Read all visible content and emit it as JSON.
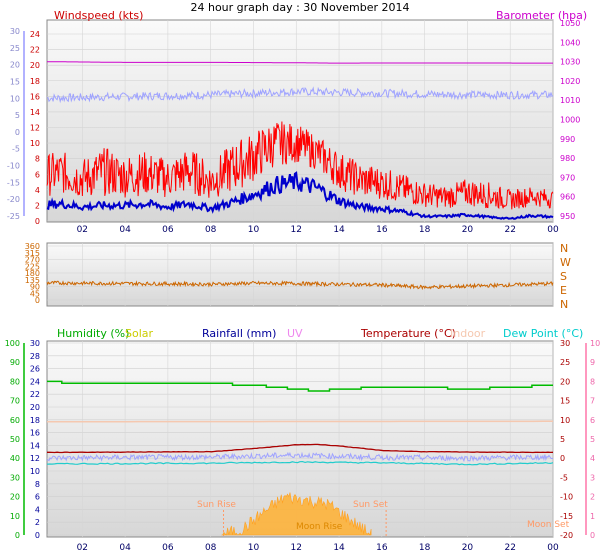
{
  "title": "24 hour graph day : 30 November 2014",
  "panels": {
    "wind": {
      "label_left": "Windspeed (kts)",
      "label_right": "Barometer (hpa)"
    },
    "direction": {
      "compass": [
        "N",
        "W",
        "S",
        "E",
        "N"
      ]
    },
    "multi": {
      "legends": [
        {
          "text": "Humidity (%)",
          "color": "#00aa00"
        },
        {
          "text": "Solar",
          "color": "#cccc00"
        },
        {
          "text": "Rainfall (mm)",
          "color": "#000099"
        },
        {
          "text": "UV",
          "color": "#ee88ee"
        },
        {
          "text": "Temperature (°C)",
          "color": "#aa0000"
        },
        {
          "text": "Indoor",
          "color": "#f5c8b0"
        },
        {
          "text": "Dew Point (°C)",
          "color": "#00cccc"
        }
      ],
      "annotations": {
        "sun_rise": "Sun Rise",
        "sun_set": "Sun Set",
        "moon_rise": "Moon Rise",
        "moon_set": "Moon Set"
      }
    }
  },
  "chart_data": [
    {
      "type": "line",
      "title": "24 hour graph day : 30 November 2014",
      "x_ticks": [
        "02",
        "04",
        "06",
        "08",
        "10",
        "12",
        "14",
        "16",
        "18",
        "20",
        "22",
        "00"
      ],
      "y_left_label": "Windspeed (kts)",
      "y_left_ticks": [
        0,
        2,
        4,
        6,
        8,
        10,
        12,
        14,
        16,
        18,
        20,
        22,
        24
      ],
      "y_left_outer_ticks": [
        -25,
        -20,
        -15,
        -10,
        -5,
        0,
        5,
        10,
        15,
        20,
        25,
        30
      ],
      "y_right_label": "Barometer (hpa)",
      "y_right_ticks": [
        950,
        960,
        970,
        980,
        990,
        1000,
        1010,
        1020,
        1030,
        1040,
        1050
      ],
      "series": [
        {
          "name": "Windspeed (kts)",
          "color": "#ff0000",
          "hours": [
            0,
            1,
            2,
            3,
            4,
            5,
            6,
            7,
            8,
            9,
            10,
            11,
            12,
            13,
            14,
            15,
            16,
            17,
            18,
            19,
            20,
            21,
            22,
            23,
            24
          ],
          "values": [
            3.0,
            3.5,
            2.8,
            3.2,
            3.0,
            3.3,
            2.9,
            3.5,
            2.7,
            3.6,
            5.0,
            7.0,
            7.5,
            6.5,
            4.0,
            3.0,
            2.8,
            2.2,
            1.8,
            1.6,
            1.9,
            1.6,
            1.4,
            1.9,
            1.6
          ]
        },
        {
          "name": "Windspeed gust",
          "color": "#ff0000",
          "hours": [
            0,
            1,
            2,
            3,
            4,
            5,
            6,
            7,
            8,
            9,
            10,
            11,
            12,
            13,
            14,
            15,
            16,
            17,
            18,
            19,
            20,
            21,
            22,
            23,
            24
          ],
          "values": [
            8.5,
            9.0,
            8.0,
            9.5,
            8.5,
            9.0,
            8.0,
            9.5,
            7.5,
            10.0,
            11.5,
            13.0,
            12.5,
            11.0,
            9.0,
            7.5,
            7.0,
            6.0,
            5.0,
            4.5,
            5.5,
            5.0,
            4.0,
            4.5,
            4.0
          ]
        },
        {
          "name": "Average windspeed",
          "color": "#0000cc",
          "hours": [
            0,
            1,
            2,
            3,
            4,
            5,
            6,
            7,
            8,
            9,
            10,
            11,
            12,
            13,
            14,
            15,
            16,
            17,
            18,
            19,
            20,
            21,
            22,
            23,
            24
          ],
          "values": [
            2.0,
            2.2,
            1.8,
            2.0,
            2.0,
            2.2,
            1.8,
            2.2,
            1.6,
            2.4,
            3.4,
            4.6,
            5.0,
            4.2,
            2.6,
            1.8,
            1.6,
            1.2,
            0.6,
            0.6,
            0.8,
            0.5,
            0.3,
            0.7,
            0.5
          ]
        },
        {
          "name": "Barometer (hpa)",
          "color": "#cc00cc",
          "hours": [
            0,
            4,
            8,
            12,
            14,
            16,
            20,
            24
          ],
          "values": [
            1030.0,
            1029.6,
            1029.6,
            1029.4,
            1029.2,
            1029.3,
            1029.3,
            1029.2
          ]
        },
        {
          "name": "Secondary",
          "color": "#9999ff",
          "hours": [
            0,
            4,
            8,
            12,
            16,
            20,
            24
          ],
          "values": [
            10,
            10.5,
            11,
            12,
            11.5,
            11,
            11
          ]
        }
      ]
    },
    {
      "type": "line",
      "title": "",
      "x_ticks": [],
      "y_left_ticks": [
        0,
        45,
        90,
        135,
        180,
        225,
        270,
        315,
        360
      ],
      "y_right_ticks": [
        "N",
        "W",
        "S",
        "E",
        "N"
      ],
      "series": [
        {
          "name": "Wind direction",
          "color": "#cc6600",
          "hours": [
            0,
            2,
            4,
            6,
            8,
            10,
            12,
            14,
            16,
            18,
            20,
            22,
            24
          ],
          "values": [
            115,
            112,
            110,
            108,
            105,
            112,
            110,
            105,
            100,
            85,
            92,
            100,
            110
          ]
        }
      ]
    },
    {
      "type": "line",
      "title": "",
      "x_ticks": [
        "02",
        "04",
        "06",
        "08",
        "10",
        "12",
        "14",
        "16",
        "18",
        "20",
        "22",
        "00"
      ],
      "y_humidity_ticks": [
        0,
        10,
        20,
        30,
        40,
        50,
        60,
        70,
        80,
        90,
        100
      ],
      "y_rain_ticks": [
        0,
        2,
        4,
        6,
        8,
        10,
        12,
        14,
        16,
        18,
        20,
        22,
        24,
        26,
        28,
        30
      ],
      "y_temp_ticks": [
        -20,
        -15,
        -10,
        -5,
        0,
        5,
        10,
        15,
        20,
        25,
        30
      ],
      "y_uv_ticks": [
        0,
        1,
        2,
        3,
        4,
        5,
        6,
        7,
        8,
        9,
        10
      ],
      "series": [
        {
          "name": "Humidity (%)",
          "color": "#00bb00",
          "hours": [
            0,
            2,
            4,
            6,
            8,
            10,
            12,
            13,
            14,
            16,
            18,
            20,
            22,
            24
          ],
          "values": [
            80,
            79,
            79,
            79,
            79,
            78,
            76,
            75,
            76,
            77,
            77,
            76,
            77,
            78
          ]
        },
        {
          "name": "Indoor",
          "color": "#f5c8b0",
          "hours": [
            0,
            24
          ],
          "values": [
            9.5,
            9.6
          ]
        },
        {
          "name": "Temperature (°C)",
          "color": "#aa0000",
          "hours": [
            0,
            4,
            8,
            10,
            12,
            13,
            14,
            16,
            18,
            20,
            24
          ],
          "values": [
            1.5,
            1.6,
            1.7,
            2.5,
            3.5,
            3.6,
            3.2,
            2.0,
            1.7,
            1.6,
            1.5
          ]
        },
        {
          "name": "Outdoor temperature noisy",
          "color": "#9999ff",
          "hours": [
            0,
            4,
            8,
            12,
            16,
            20,
            24
          ],
          "values": [
            0.0,
            0.2,
            0.3,
            0.8,
            0.2,
            0.0,
            0.3
          ]
        },
        {
          "name": "Dew Point (°C)",
          "color": "#00cccc",
          "hours": [
            0,
            4,
            8,
            12,
            16,
            20,
            24
          ],
          "values": [
            -1.5,
            -1.4,
            -1.3,
            -1.0,
            -1.2,
            -1.6,
            -1.2
          ]
        },
        {
          "name": "Solar",
          "color": "#ffb030",
          "hours": [
            8.5,
            9.5,
            10.5,
            11.5,
            12.5,
            13.5,
            14.5,
            15.5
          ],
          "values": [
            0.0,
            0.3,
            1.2,
            2.0,
            1.8,
            1.6,
            0.8,
            0.0
          ]
        }
      ]
    }
  ]
}
